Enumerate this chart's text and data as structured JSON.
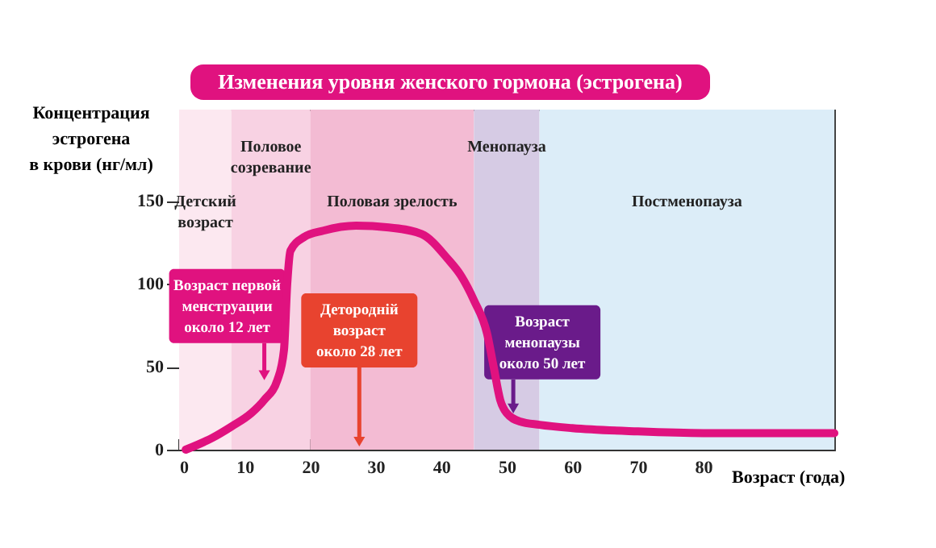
{
  "chart_data": {
    "type": "line",
    "title": "Изменения уровня женского гормона (эстрогена)",
    "xlabel": "Возраст (года)",
    "ylabel": "Концентрация\nэстрогена\nв крови (нг/мл)",
    "x": [
      1,
      5,
      8,
      11,
      13,
      15,
      16,
      16.5,
      17,
      19,
      22,
      27,
      32,
      37,
      41,
      43,
      45,
      47,
      48,
      49,
      50,
      52,
      55,
      60,
      70,
      80,
      90,
      100
    ],
    "series": [
      {
        "color": "#e0127f",
        "values": [
          0,
          7,
          14,
          22,
          30,
          42,
          60,
          100,
          120,
          128,
          132,
          135,
          134,
          130,
          115,
          105,
          90,
          70,
          50,
          30,
          22,
          17,
          15,
          13,
          11,
          10,
          10,
          10
        ]
      }
    ],
    "xlim": [
      0,
      100
    ],
    "ylim": [
      0,
      205
    ],
    "xticks": [
      0,
      10,
      20,
      30,
      40,
      50,
      60,
      70,
      80
    ],
    "yticks": [
      0,
      50,
      100,
      150
    ],
    "bands": [
      {
        "axis": "x",
        "from": 0,
        "to": 8,
        "label": "Детский\nвозраст",
        "color": "#fce8f0"
      },
      {
        "axis": "x",
        "from": 8,
        "to": 20,
        "label": "Половое\nсозревание",
        "color": "#f8d2e3"
      },
      {
        "axis": "x",
        "from": 20,
        "to": 45,
        "label": "Половая зрелость",
        "color": "#f3bbd3"
      },
      {
        "axis": "x",
        "from": 45,
        "to": 55,
        "label": "Менопауза",
        "color": "#d6cbe4"
      },
      {
        "axis": "x",
        "from": 55,
        "to": 100,
        "label": "Постменопауза",
        "color": "#dcedf8"
      }
    ],
    "annotations": [
      {
        "text": "Возраст первой\nменструации\nоколо 12 лет",
        "x": 13,
        "y": 40
      },
      {
        "text": "Детородній\nвозраст\nоколо 28 лет",
        "x": 27.5,
        "y": 0
      },
      {
        "text": "Возраст\nменопаузы\nоколо 50 лет",
        "x": 51,
        "y": 20
      }
    ],
    "grid": false,
    "marker": "none",
    "line_style": "solid"
  }
}
